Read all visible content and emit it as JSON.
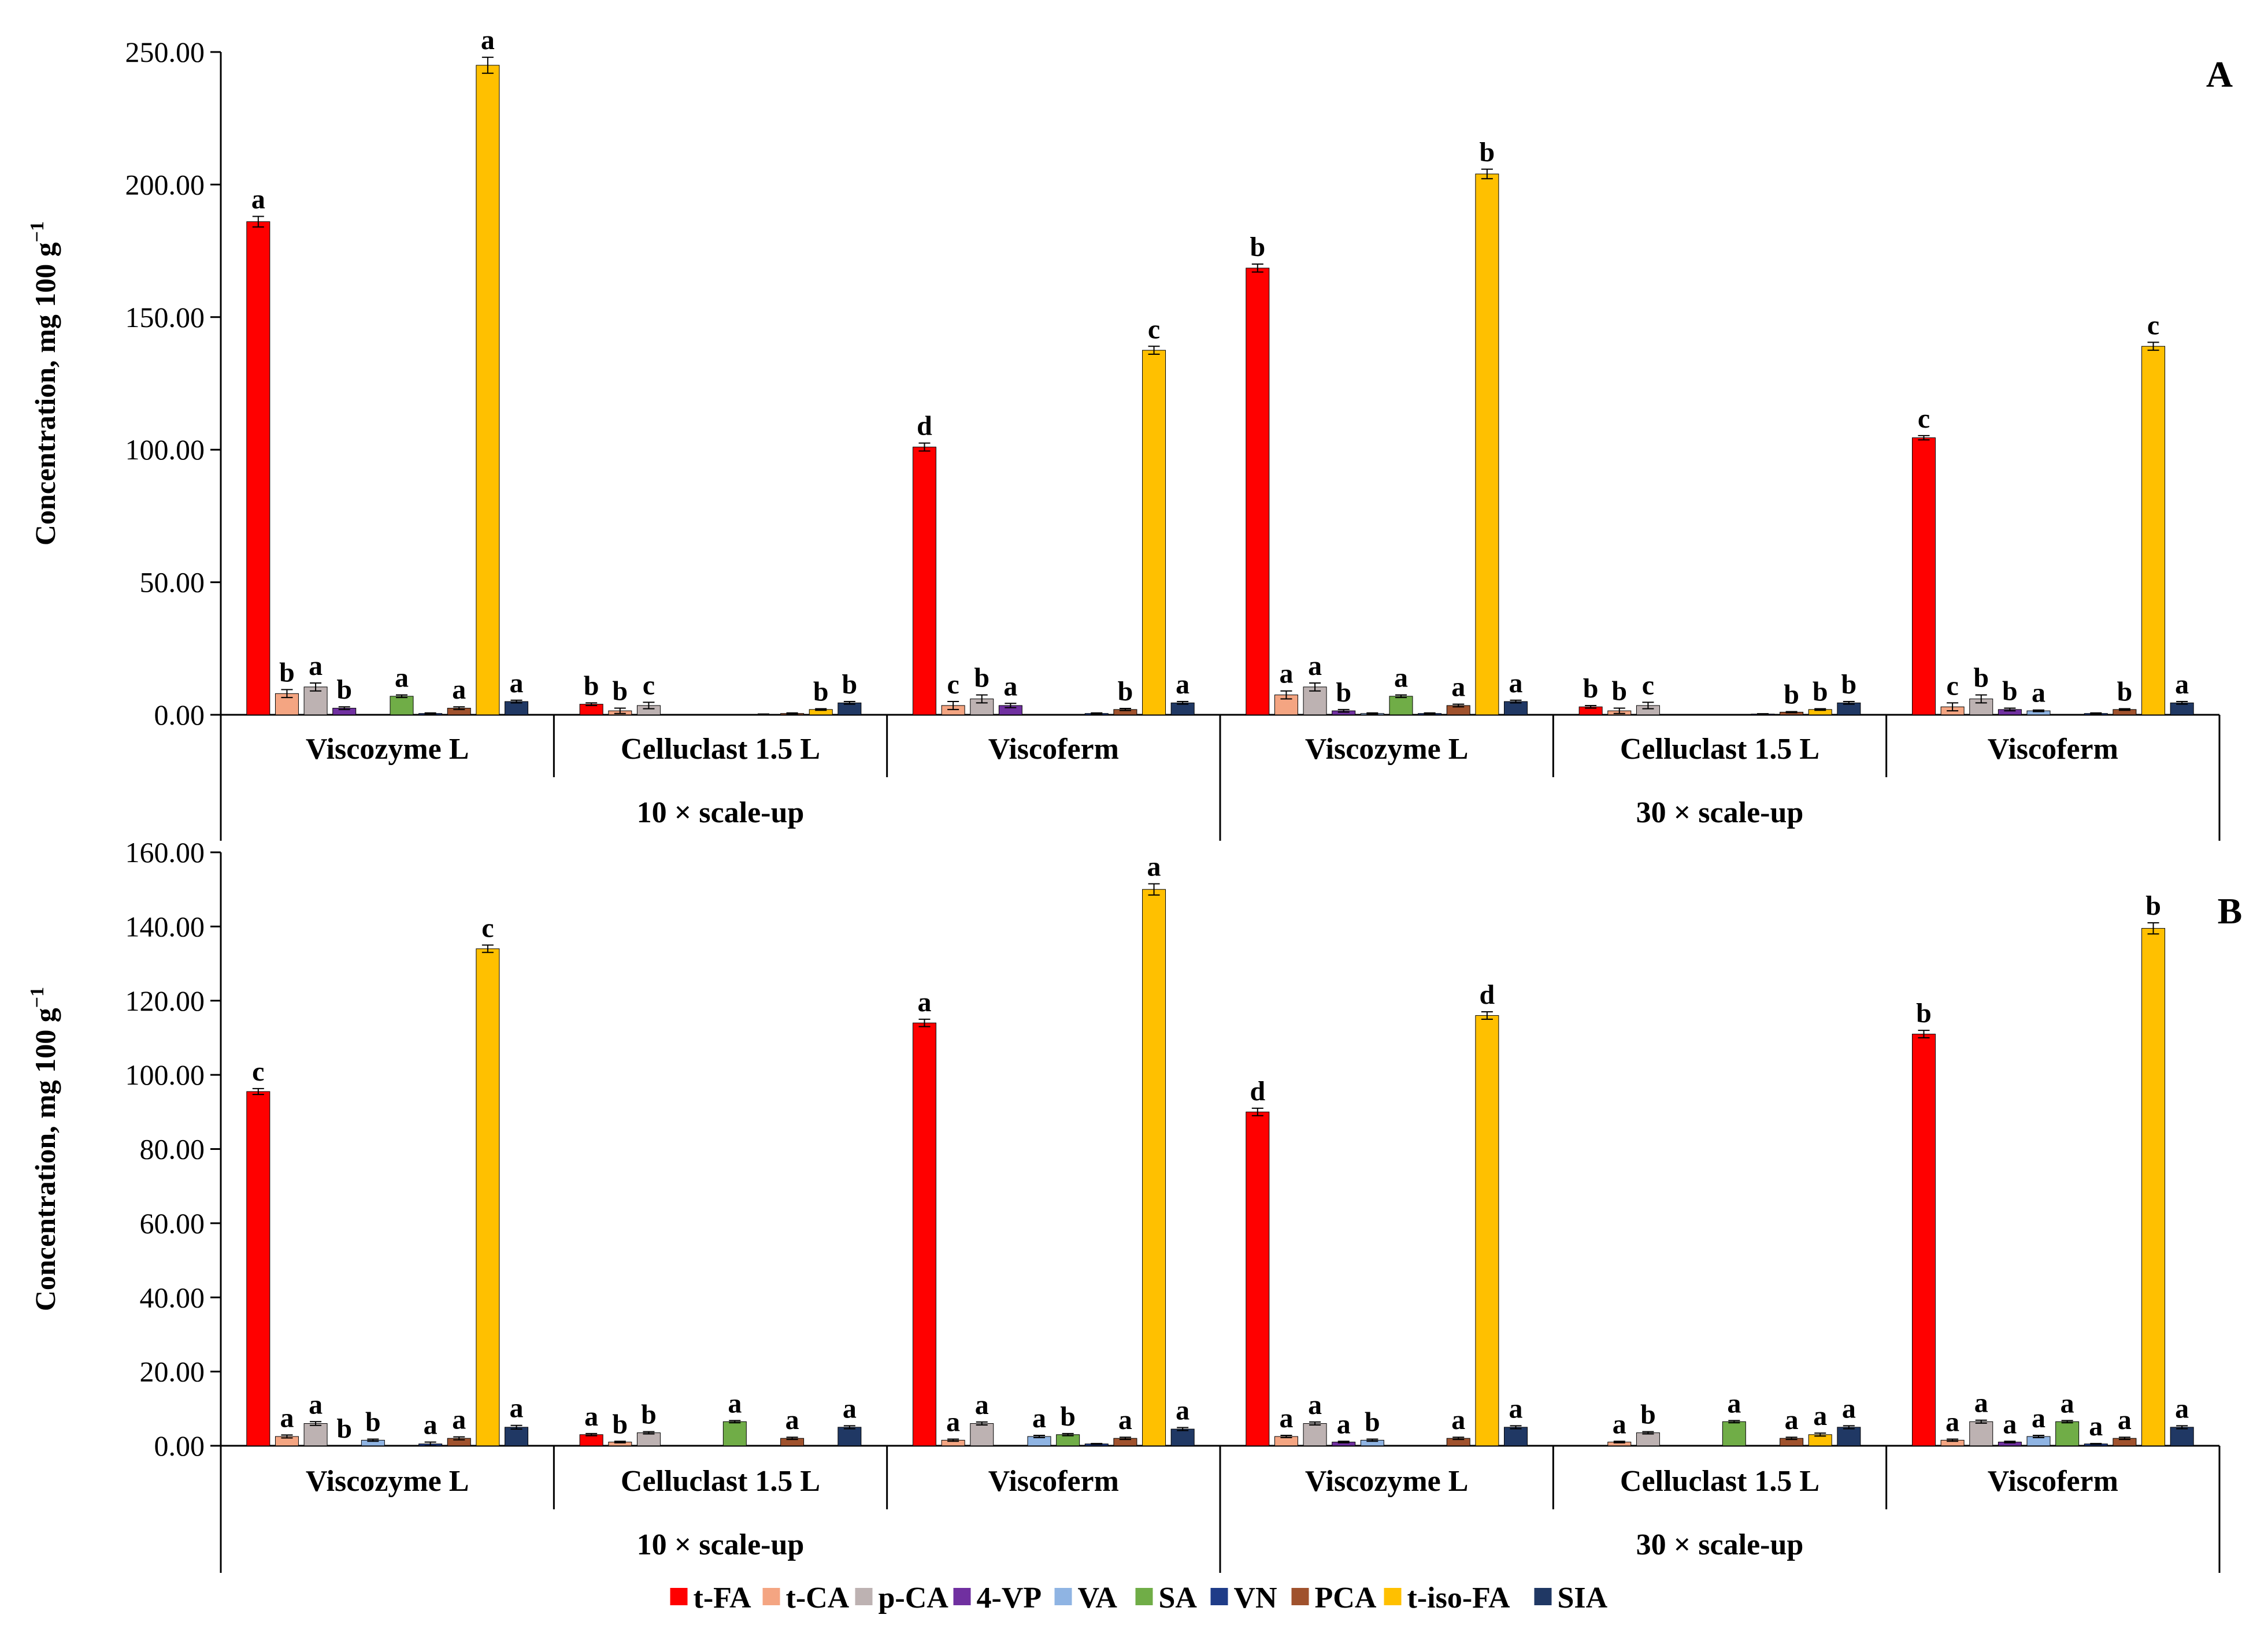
{
  "chart_data": {
    "type": "bar",
    "colors": {
      "t-FA": "#ff0000",
      "t-CA": "#f4a582",
      "p-CA": "#bdb2b2",
      "4-VP": "#7030a0",
      "VA": "#8fb4e3",
      "SA": "#70ad47",
      "VN": "#1f3c88",
      "PCA": "#a0522d",
      "t-iso-FA": "#ffc000",
      "SIA": "#203864"
    },
    "series_names": [
      "t-FA",
      "t-CA",
      "p-CA",
      "4-VP",
      "VA",
      "SA",
      "VN",
      "PCA",
      "t-iso-FA",
      "SIA"
    ],
    "legend": [
      "t-FA",
      "t-CA",
      "p-CA",
      "4-VP",
      "VA",
      "SA",
      "VN",
      "PCA",
      "t-iso-FA",
      "SIA"
    ],
    "panels": [
      {
        "letter": "A",
        "ylabel": "Concentration, mg 100 g",
        "ylabel_exp": "−1",
        "ylim": [
          0,
          250
        ],
        "yticks": [
          "0.00",
          "50.00",
          "100.00",
          "150.00",
          "200.00",
          "250.00"
        ],
        "ytick_values": [
          0,
          50,
          100,
          150,
          200,
          250
        ],
        "scales": [
          "10 × scale-up",
          "30 × scale-up"
        ],
        "enzymes": [
          "Viscozyme L",
          "Celluclast 1.5 L",
          "Viscoferm",
          "Viscozyme L",
          "Celluclast 1.5 L",
          "Viscoferm"
        ],
        "groups": [
          {
            "values": [
              186,
              8,
              10.5,
              2.5,
              0,
              7,
              0.5,
              2.5,
              245,
              5
            ],
            "errors": [
              2,
              1.5,
              1.5,
              0.5,
              0,
              0.5,
              0.2,
              0.5,
              3,
              0.5
            ],
            "letters": [
              "a",
              "b",
              "a",
              "b",
              "",
              "a",
              "",
              "a",
              "a",
              "a"
            ]
          },
          {
            "values": [
              4,
              1.5,
              3.5,
              0,
              0,
              0,
              0.2,
              0.5,
              2,
              4.5
            ],
            "errors": [
              0.5,
              1,
              1.2,
              0,
              0,
              0,
              0.1,
              0.2,
              0.3,
              0.5
            ],
            "letters": [
              "b",
              "b",
              "c",
              "",
              "",
              "",
              "",
              "",
              "b",
              "b"
            ]
          },
          {
            "values": [
              101,
              3.5,
              6,
              3.5,
              0,
              0,
              0.5,
              2,
              137.5,
              4.5
            ],
            "errors": [
              1.5,
              1.5,
              1.5,
              0.8,
              0,
              0,
              0.2,
              0.4,
              1.5,
              0.5
            ],
            "letters": [
              "d",
              "c",
              "b",
              "a",
              "",
              "",
              "",
              "b",
              "c",
              "a"
            ]
          },
          {
            "values": [
              168.5,
              7.5,
              10.5,
              1.5,
              0.5,
              7,
              0.5,
              3.5,
              204,
              5
            ],
            "errors": [
              1.5,
              1.5,
              1.5,
              0.5,
              0.2,
              0.5,
              0.2,
              0.5,
              1.8,
              0.5
            ],
            "letters": [
              "b",
              "a",
              "a",
              "b",
              "",
              "a",
              "",
              "a",
              "b",
              "a"
            ]
          },
          {
            "values": [
              3,
              1.5,
              3.5,
              0,
              0,
              0,
              0.3,
              1,
              2,
              4.5
            ],
            "errors": [
              0.5,
              1,
              1.2,
              0,
              0,
              0,
              0.1,
              0.2,
              0.3,
              0.5
            ],
            "letters": [
              "b",
              "b",
              "c",
              "",
              "",
              "",
              "",
              "b",
              "b",
              "b"
            ]
          },
          {
            "values": [
              104.5,
              3,
              6,
              2,
              1.5,
              0,
              0.5,
              2,
              139,
              4.5
            ],
            "errors": [
              0.8,
              1.5,
              1.5,
              0.5,
              0.3,
              0,
              0.2,
              0.3,
              1.5,
              0.5
            ],
            "letters": [
              "c",
              "c",
              "b",
              "b",
              "a",
              "",
              "",
              "b",
              "c",
              "a"
            ]
          }
        ]
      },
      {
        "letter": "B",
        "ylabel": "Concentration, mg 100 g",
        "ylabel_exp": "−1",
        "ylim": [
          0,
          160
        ],
        "yticks": [
          "0.00",
          "20.00",
          "40.00",
          "60.00",
          "80.00",
          "100.00",
          "120.00",
          "140.00",
          "160.00"
        ],
        "ytick_values": [
          0,
          20,
          40,
          60,
          80,
          100,
          120,
          140,
          160
        ],
        "scales": [
          "10 × scale-up",
          "30 × scale-up"
        ],
        "enzymes": [
          "Viscozyme L",
          "Celluclast 1.5 L",
          "Viscoferm",
          "Viscozyme L",
          "Celluclast 1.5 L",
          "Viscoferm"
        ],
        "groups": [
          {
            "values": [
              95.5,
              2.5,
              6,
              0,
              1.5,
              0,
              0.5,
              2,
              134,
              5
            ],
            "errors": [
              0.8,
              0.4,
              0.5,
              0,
              0.3,
              0,
              0.5,
              0.4,
              1,
              0.5
            ],
            "letters": [
              "c",
              "a",
              "a",
              "b",
              "b",
              "",
              "a",
              "a",
              "c",
              "a"
            ]
          },
          {
            "values": [
              3,
              1,
              3.5,
              0,
              0,
              6.5,
              0,
              2,
              0,
              5
            ],
            "errors": [
              0.3,
              0.2,
              0.3,
              0,
              0,
              0.3,
              0,
              0.3,
              0,
              0.4
            ],
            "letters": [
              "a",
              "b",
              "b",
              "",
              "",
              "a",
              "",
              "a",
              "",
              "a"
            ]
          },
          {
            "values": [
              114,
              1.5,
              6,
              0,
              2.5,
              3,
              0.5,
              2,
              150,
              4.5
            ],
            "errors": [
              1,
              0.3,
              0.4,
              0,
              0.3,
              0.3,
              0.1,
              0.3,
              1.5,
              0.4
            ],
            "letters": [
              "a",
              "a",
              "a",
              "",
              "a",
              "b",
              "",
              "a",
              "a",
              "a"
            ]
          },
          {
            "values": [
              90,
              2.5,
              6,
              1,
              1.5,
              0,
              0,
              2,
              116,
              5
            ],
            "errors": [
              1,
              0.3,
              0.4,
              0.2,
              0.3,
              0,
              0,
              0.3,
              1,
              0.4
            ],
            "letters": [
              "d",
              "a",
              "a",
              "a",
              "b",
              "",
              "",
              "a",
              "d",
              "a"
            ]
          },
          {
            "values": [
              0,
              1,
              3.5,
              0,
              0,
              6.5,
              0,
              2,
              3,
              5
            ],
            "errors": [
              0,
              0.2,
              0.3,
              0,
              0,
              0.3,
              0,
              0.3,
              0.4,
              0.4
            ],
            "letters": [
              "",
              "a",
              "b",
              "",
              "",
              "a",
              "",
              "a",
              "a",
              "a"
            ]
          },
          {
            "values": [
              111,
              1.5,
              6.5,
              1,
              2.5,
              6.5,
              0.5,
              2,
              139.5,
              5
            ],
            "errors": [
              1,
              0.3,
              0.4,
              0.2,
              0.3,
              0.3,
              0.1,
              0.3,
              1.5,
              0.4
            ],
            "letters": [
              "b",
              "a",
              "a",
              "a",
              "a",
              "a",
              "a",
              "a",
              "b",
              "a"
            ]
          }
        ]
      }
    ]
  }
}
